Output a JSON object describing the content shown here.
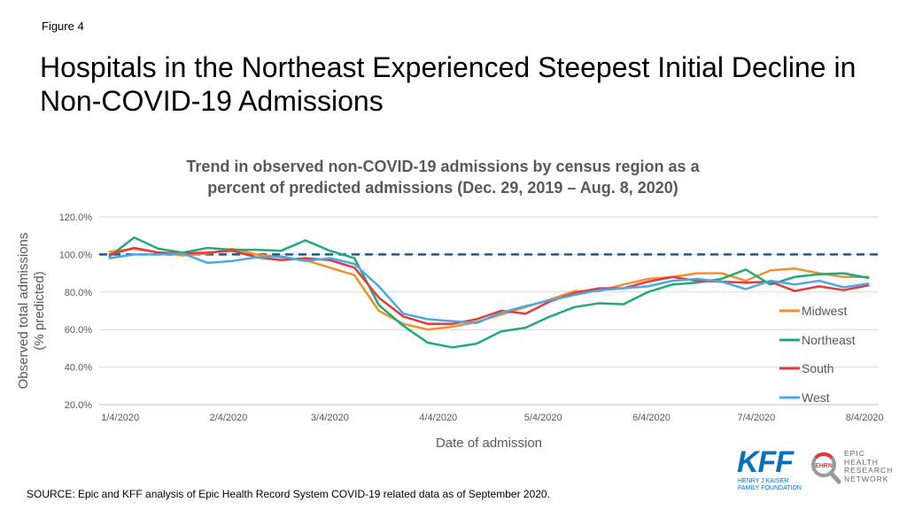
{
  "figure_label": "Figure 4",
  "headline": "Hospitals in the Northeast Experienced Steepest Initial Decline in Non-COVID-19 Admissions",
  "source": "SOURCE: Epic and KFF analysis of Epic Health Record System COVID-19 related data as of September 2020.",
  "logos": {
    "kff": "KFF",
    "kff_sub_1": "HENRY J KAISER",
    "kff_sub_2": "FAMILY FOUNDATION",
    "ehrn_badge": "EHRN",
    "ehrn_lines": [
      "EPIC",
      "HEALTH",
      "RESEARCH",
      "NETWORK"
    ],
    "kff_color": "#0b6fba",
    "ehrn_color": "#e23b33"
  },
  "chart_data": {
    "type": "line",
    "title": "Trend in observed non-COVID-19 admissions by census region as a percent of predicted admissions (Dec. 29, 2019 – Aug. 8, 2020)",
    "title_lines": [
      "Trend in observed non-COVID-19 admissions by census region as a",
      "percent of predicted admissions (Dec. 29, 2019 – Aug. 8, 2020)"
    ],
    "xlabel": "Date of admission",
    "ylabel_lines": [
      "Observed total admissions",
      "(% predicted)"
    ],
    "ylim": [
      20,
      120
    ],
    "yticks": [
      20,
      40,
      60,
      80,
      100,
      120
    ],
    "ytick_labels": [
      "20.0%",
      "40.0%",
      "60.0%",
      "80.0%",
      "100.0%",
      "120.0%"
    ],
    "xlim": [
      "2019-12-29",
      "2020-08-08"
    ],
    "xticks": [
      "2020-01-04",
      "2020-02-04",
      "2020-03-04",
      "2020-04-04",
      "2020-05-04",
      "2020-06-04",
      "2020-07-04",
      "2020-08-04"
    ],
    "xtick_labels": [
      "1/4/2020",
      "2/4/2020",
      "3/4/2020",
      "4/4/2020",
      "5/4/2020",
      "6/4/2020",
      "7/4/2020",
      "8/4/2020"
    ],
    "reference_line": 100,
    "legend_position": "right",
    "grid": "horizontal",
    "x": [
      "2020-01-01",
      "2020-01-08",
      "2020-01-15",
      "2020-01-22",
      "2020-01-29",
      "2020-02-05",
      "2020-02-12",
      "2020-02-19",
      "2020-02-26",
      "2020-03-04",
      "2020-03-11",
      "2020-03-18",
      "2020-03-25",
      "2020-04-01",
      "2020-04-08",
      "2020-04-15",
      "2020-04-22",
      "2020-04-29",
      "2020-05-06",
      "2020-05-13",
      "2020-05-20",
      "2020-05-27",
      "2020-06-03",
      "2020-06-10",
      "2020-06-17",
      "2020-06-24",
      "2020-07-01",
      "2020-07-08",
      "2020-07-15",
      "2020-07-22",
      "2020-07-29",
      "2020-08-05"
    ],
    "series": [
      {
        "name": "Midwest",
        "color": "#f28e2b",
        "values": [
          101.5,
          103,
          101,
          99.5,
          100.5,
          103,
          100,
          98.5,
          97,
          93,
          89,
          70,
          63,
          60,
          61.5,
          64,
          68,
          72,
          76,
          80.5,
          80.5,
          84,
          87,
          88,
          90,
          90,
          86,
          91.5,
          92.5,
          90,
          88,
          88
        ]
      },
      {
        "name": "Northeast",
        "color": "#20a97b",
        "values": [
          99,
          109,
          103,
          101,
          103.5,
          102.5,
          102.5,
          102,
          107.5,
          102,
          98,
          73,
          62,
          53,
          50.5,
          52.5,
          59,
          61,
          67,
          72,
          74,
          73.5,
          80,
          84,
          85,
          87,
          92,
          84,
          88,
          89.5,
          90,
          87.5
        ]
      },
      {
        "name": "South",
        "color": "#e23b3b",
        "values": [
          100,
          103.5,
          101,
          100.5,
          101,
          102,
          98.5,
          97,
          98,
          97,
          93,
          77,
          67,
          63,
          63,
          65.5,
          70,
          68.5,
          75,
          79.5,
          82,
          82,
          85.5,
          88,
          86,
          85.5,
          85,
          85.5,
          80.5,
          83,
          81,
          83.5
        ]
      },
      {
        "name": "West",
        "color": "#4aa8e8",
        "values": [
          98,
          100,
          100,
          100.5,
          95.5,
          96.5,
          98.5,
          99,
          96.5,
          98,
          95,
          83,
          68.5,
          65.5,
          64.5,
          63.5,
          69,
          72.5,
          75.5,
          78.5,
          81,
          82,
          83,
          86,
          87,
          85.5,
          81.5,
          86,
          84,
          86,
          82.5,
          84.5
        ]
      }
    ]
  }
}
